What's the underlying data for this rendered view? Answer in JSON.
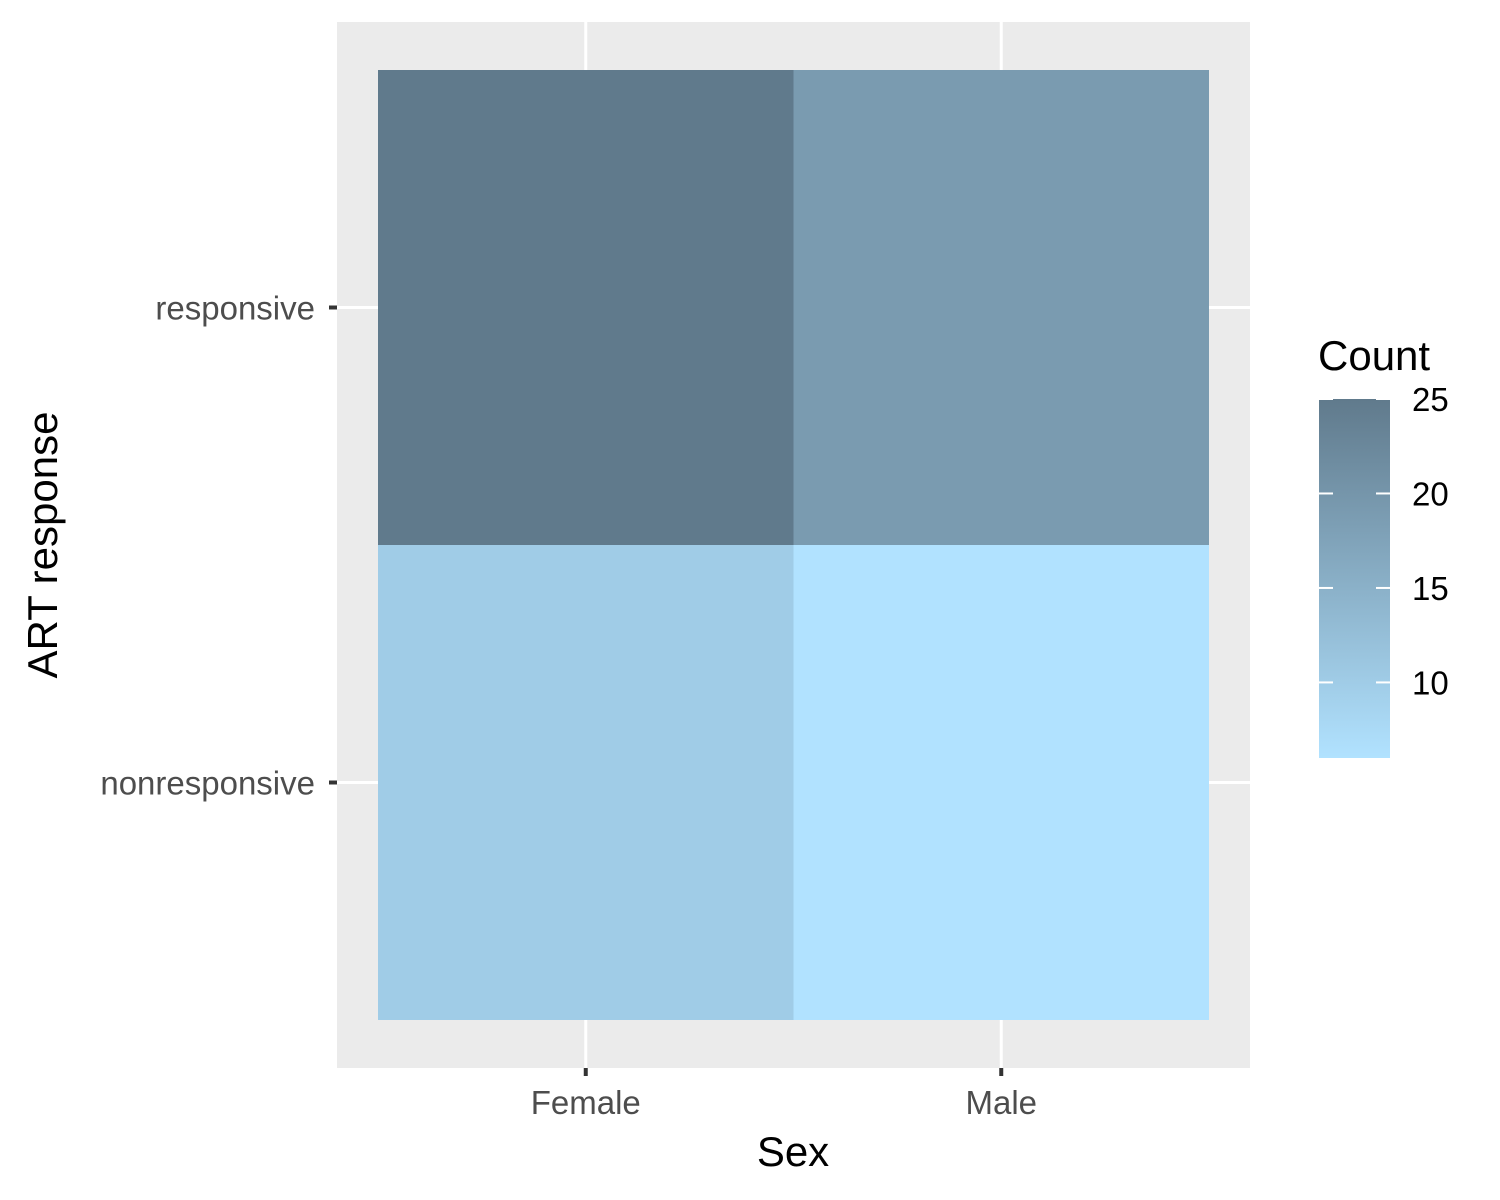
{
  "chart_data": {
    "type": "heatmap",
    "x_categories": [
      "Female",
      "Male"
    ],
    "y_categories": [
      "nonresponsive",
      "responsive"
    ],
    "cells": [
      {
        "x": "Female",
        "y": "responsive",
        "value": 25
      },
      {
        "x": "Male",
        "y": "responsive",
        "value": 19
      },
      {
        "x": "Female",
        "y": "nonresponsive",
        "value": 10
      },
      {
        "x": "Male",
        "y": "nonresponsive",
        "value": 6
      }
    ],
    "xlabel": "Sex",
    "ylabel": "ART response",
    "legend": {
      "title": "Count",
      "breaks": [
        10,
        15,
        20,
        25
      ],
      "range": [
        6,
        25
      ],
      "low_color": "#b1e2ff",
      "high_color": "#607a8c",
      "placement": "right"
    },
    "colors": {
      "panel_background": "#ebebeb",
      "grid_line": "#ffffff",
      "axis_tick": "#333333"
    },
    "grid": true
  }
}
